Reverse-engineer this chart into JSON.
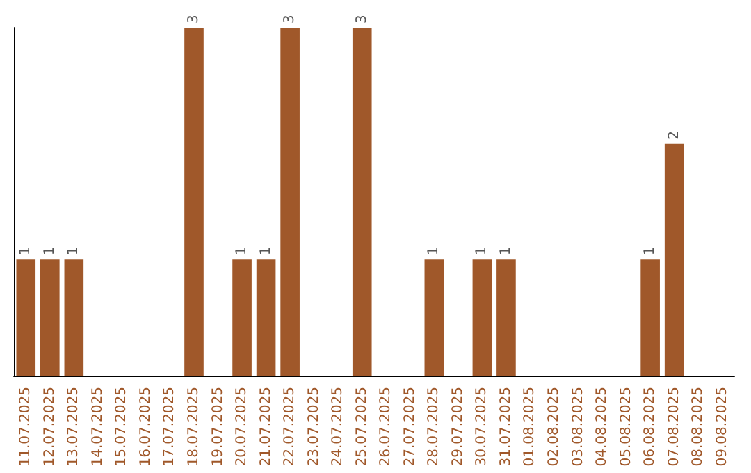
{
  "chart_data": {
    "type": "bar",
    "categories": [
      "11.07.2025",
      "12.07.2025",
      "13.07.2025",
      "14.07.2025",
      "15.07.2025",
      "16.07.2025",
      "17.07.2025",
      "18.07.2025",
      "19.07.2025",
      "20.07.2025",
      "21.07.2025",
      "22.07.2025",
      "23.07.2025",
      "24.07.2025",
      "25.07.2025",
      "26.07.2025",
      "27.07.2025",
      "28.07.2025",
      "29.07.2025",
      "30.07.2025",
      "31.07.2025",
      "01.08.2025",
      "02.08.2025",
      "03.08.2025",
      "04.08.2025",
      "05.08.2025",
      "06.08.2025",
      "07.08.2025",
      "08.08.2025",
      "09.08.2025"
    ],
    "values": [
      1,
      1,
      1,
      0,
      0,
      0,
      0,
      3,
      0,
      1,
      1,
      3,
      0,
      0,
      3,
      0,
      0,
      1,
      0,
      1,
      1,
      0,
      0,
      0,
      0,
      0,
      1,
      2,
      0,
      0
    ],
    "value_labels": [
      "1",
      "1",
      "1",
      null,
      null,
      null,
      null,
      "3",
      null,
      "1",
      "1",
      "3",
      null,
      null,
      "3",
      null,
      null,
      "1",
      null,
      "1",
      "1",
      null,
      null,
      null,
      null,
      null,
      "1",
      "2",
      null,
      null
    ],
    "color": "#a0582a",
    "grid": false,
    "tick_labels": "x"
  }
}
